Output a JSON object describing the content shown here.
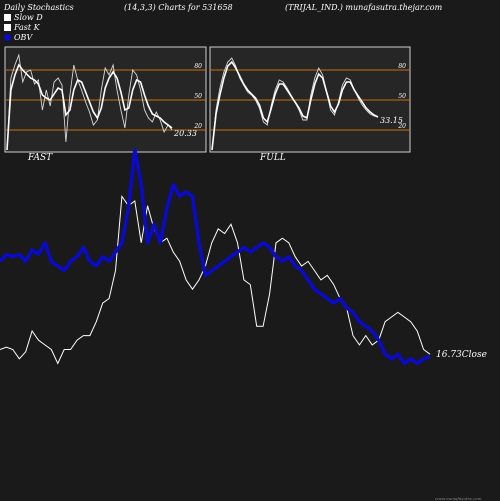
{
  "header": {
    "left": "Daily Stochastics",
    "center": "(14,3,3) Charts for 531658",
    "right": "(TRIJAL_IND.) munafasutra.thejar.com"
  },
  "legend": [
    {
      "label": "Slow  D",
      "color": "#ffffff"
    },
    {
      "label": "Fast  K",
      "color": "#ffffff"
    },
    {
      "label": "OBV",
      "color": "#0a0acc"
    }
  ],
  "footer": {
    "url": "www.munafasutra.com"
  },
  "chart_data": [
    {
      "type": "line",
      "panel": "FAST",
      "title": "FAST",
      "ylim": [
        0,
        100
      ],
      "levels": [
        20,
        50,
        80
      ],
      "level_labels": [
        "20",
        "50",
        "80"
      ],
      "last_value_label": "20.33",
      "series": [
        {
          "role": "fast",
          "values": [
            0,
            72,
            85,
            95,
            68,
            78,
            80,
            66,
            70,
            40,
            60,
            44,
            68,
            72,
            65,
            8,
            55,
            85,
            70,
            60,
            48,
            38,
            25,
            30,
            60,
            82,
            75,
            85,
            60,
            40,
            22,
            55,
            80,
            75,
            60,
            40,
            32,
            28,
            38,
            30,
            18,
            25,
            20
          ]
        },
        {
          "role": "slow",
          "values": [
            0,
            60,
            75,
            85,
            80,
            76,
            72,
            70,
            66,
            55,
            52,
            50,
            56,
            62,
            60,
            35,
            40,
            60,
            70,
            68,
            58,
            48,
            38,
            32,
            42,
            62,
            72,
            78,
            72,
            58,
            40,
            42,
            60,
            70,
            68,
            55,
            44,
            36,
            34,
            32,
            28,
            25,
            22
          ]
        }
      ]
    },
    {
      "type": "line",
      "panel": "FULL",
      "title": "FULL",
      "ylim": [
        0,
        100
      ],
      "levels": [
        20,
        50,
        80
      ],
      "level_labels": [
        "20",
        "50",
        "80"
      ],
      "last_value_label": "33.15",
      "series": [
        {
          "role": "fast",
          "values": [
            0,
            40,
            62,
            78,
            88,
            92,
            84,
            72,
            65,
            58,
            55,
            50,
            42,
            28,
            25,
            45,
            60,
            70,
            68,
            62,
            55,
            48,
            40,
            30,
            30,
            55,
            72,
            82,
            75,
            58,
            40,
            35,
            48,
            65,
            72,
            70,
            60,
            52,
            45,
            40,
            36,
            34,
            33
          ]
        },
        {
          "role": "slow",
          "values": [
            0,
            36,
            55,
            72,
            84,
            88,
            82,
            74,
            66,
            60,
            56,
            52,
            45,
            32,
            28,
            42,
            56,
            66,
            66,
            60,
            54,
            48,
            42,
            34,
            32,
            50,
            66,
            76,
            72,
            58,
            44,
            38,
            46,
            60,
            68,
            68,
            60,
            54,
            48,
            42,
            38,
            35,
            33
          ]
        }
      ]
    },
    {
      "type": "line",
      "panel": "PRICE",
      "last_value_label": "16.73",
      "last_value_suffix": "Close",
      "series": [
        {
          "role": "close",
          "values": [
            14,
            15,
            14,
            10,
            13,
            22,
            18,
            16,
            14,
            8,
            14,
            14,
            18,
            20,
            20,
            26,
            34,
            36,
            48,
            80,
            76,
            78,
            60,
            76,
            66,
            60,
            62,
            56,
            52,
            44,
            40,
            44,
            50,
            60,
            66,
            64,
            68,
            60,
            44,
            42,
            24,
            24,
            38,
            60,
            62,
            60,
            54,
            50,
            52,
            48,
            44,
            46,
            42,
            36,
            32,
            20,
            16,
            20,
            16,
            18,
            26,
            28,
            30,
            28,
            26,
            22,
            14,
            12
          ]
        },
        {
          "role": "obv",
          "values": [
            52,
            55,
            54,
            55,
            52,
            57,
            55,
            60,
            52,
            50,
            48,
            52,
            54,
            58,
            52,
            50,
            54,
            52,
            56,
            60,
            75,
            100,
            85,
            60,
            68,
            60,
            75,
            85,
            80,
            82,
            80,
            60,
            46,
            48,
            50,
            52,
            54,
            56,
            58,
            56,
            58,
            60,
            58,
            54,
            52,
            54,
            50,
            48,
            44,
            40,
            38,
            36,
            34,
            36,
            32,
            30,
            26,
            24,
            22,
            18,
            12,
            10,
            12,
            8,
            10,
            8,
            10,
            11
          ]
        }
      ]
    }
  ]
}
